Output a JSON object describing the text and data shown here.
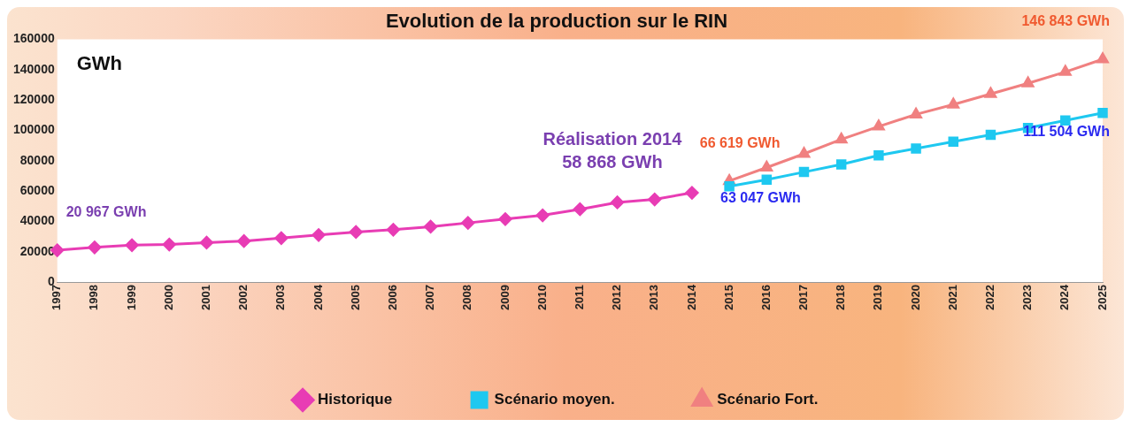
{
  "chart_data": {
    "type": "line",
    "title": "Evolution de la production sur le RIN",
    "ylabel": "GWh",
    "categories": [
      "1997",
      "1998",
      "1999",
      "2000",
      "2001",
      "2002",
      "2003",
      "2004",
      "2005",
      "2006",
      "2007",
      "2008",
      "2009",
      "2010",
      "2011",
      "2012",
      "2013",
      "2014",
      "2015",
      "2016",
      "2017",
      "2018",
      "2019",
      "2020",
      "2021",
      "2022",
      "2023",
      "2024",
      "2025"
    ],
    "series": [
      {
        "name": "Historique",
        "color": "#e83cb4",
        "marker": "diamond",
        "values": [
          20967,
          22900,
          24300,
          24800,
          26000,
          27000,
          29000,
          31000,
          33000,
          34500,
          36500,
          39000,
          41500,
          44000,
          48000,
          52500,
          54500,
          58868,
          null,
          null,
          null,
          null,
          null,
          null,
          null,
          null,
          null,
          null,
          null
        ]
      },
      {
        "name": "Scénario moyen.",
        "color": "#1ec8f0",
        "marker": "square",
        "values": [
          null,
          null,
          null,
          null,
          null,
          null,
          null,
          null,
          null,
          null,
          null,
          null,
          null,
          null,
          null,
          null,
          null,
          null,
          63047,
          67500,
          72500,
          77500,
          83500,
          88000,
          92500,
          97000,
          101500,
          106500,
          111504
        ]
      },
      {
        "name": "Scénario Fort.",
        "color": "#f08080",
        "marker": "triangle",
        "values": [
          null,
          null,
          null,
          null,
          null,
          null,
          null,
          null,
          null,
          null,
          null,
          null,
          null,
          null,
          null,
          null,
          null,
          null,
          66619,
          75500,
          84500,
          94000,
          102500,
          110500,
          117000,
          124000,
          131000,
          138500,
          146843
        ]
      }
    ],
    "ylim": [
      0,
      160000
    ],
    "yticks": [
      0,
      20000,
      40000,
      60000,
      80000,
      100000,
      120000,
      140000,
      160000
    ],
    "grid": false,
    "legend": "bottom",
    "annotations": [
      {
        "text": "20 967 GWh",
        "x": "1997",
        "y": 20967
      },
      {
        "text": "Réalisation 2014\n58 868 GWh",
        "x": "2014",
        "y": 58868
      },
      {
        "text": "63 047 GWh",
        "x": "2015",
        "y": 63047
      },
      {
        "text": "66 619 GWh",
        "x": "2015",
        "y": 66619
      },
      {
        "text": "111 504 GWh",
        "x": "2025",
        "y": 111504
      },
      {
        "text": "146 843 GWh",
        "x": "2025",
        "y": 146843
      }
    ]
  }
}
